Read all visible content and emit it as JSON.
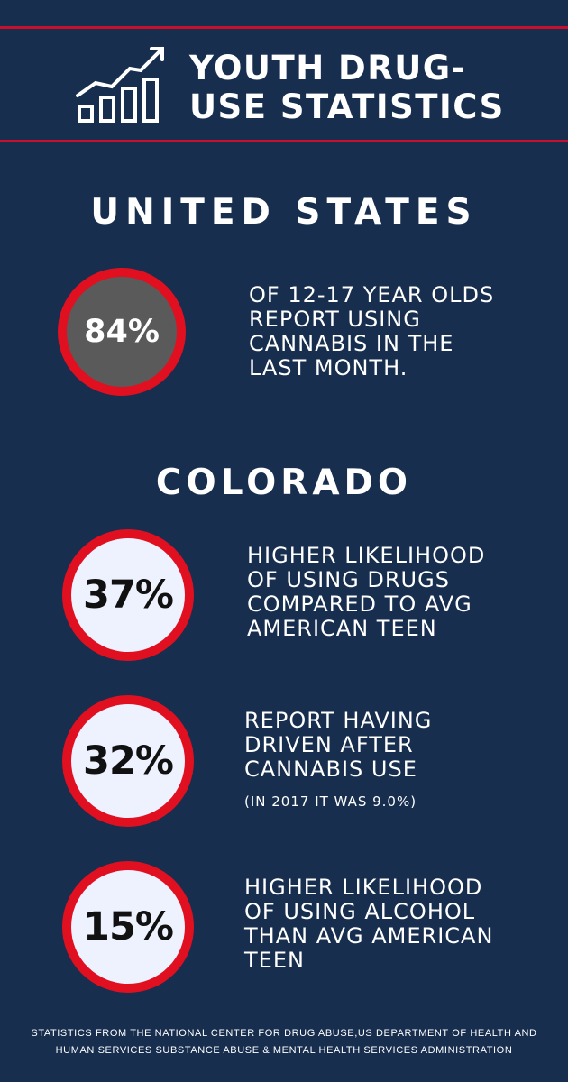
{
  "header": {
    "icon": "bar-chart-trend-icon",
    "title_lines": [
      "YOUTH DRUG-",
      "USE STATISTICS"
    ]
  },
  "colors": {
    "background": "#172e4f",
    "accent_red": "#e01020",
    "dark_circle": "#5a5a5a",
    "light_circle": "#eef2ff"
  },
  "united_states": {
    "title": "UNITED STATES",
    "stat": {
      "value": "84%",
      "text_lines": [
        "OF 12-17 YEAR OLDS",
        "REPORT USING",
        "CANNABIS IN THE",
        "LAST MONTH."
      ]
    }
  },
  "colorado": {
    "title": "COLORADO",
    "stats": [
      {
        "value": "37%",
        "text_lines": [
          "HIGHER LIKELIHOOD",
          "OF USING DRUGS",
          "COMPARED TO AVG",
          "AMERICAN TEEN"
        ]
      },
      {
        "value": "32%",
        "text_lines": [
          "REPORT HAVING",
          "DRIVEN AFTER",
          "CANNABIS USE"
        ],
        "note": "(IN 2017 IT WAS 9.0%)"
      },
      {
        "value": "15%",
        "text_lines": [
          "HIGHER LIKELIHOOD",
          "OF USING ALCOHOL",
          "THAN AVG AMERICAN",
          "TEEN"
        ]
      }
    ]
  },
  "footer": {
    "lines": [
      "STATISTICS FROM THE NATIONAL CENTER FOR DRUG ABUSE,US DEPARTMENT OF HEALTH AND",
      "HUMAN SERVICES SUBSTANCE ABUSE & MENTAL HEALTH SERVICES ADMINISTRATION"
    ]
  }
}
